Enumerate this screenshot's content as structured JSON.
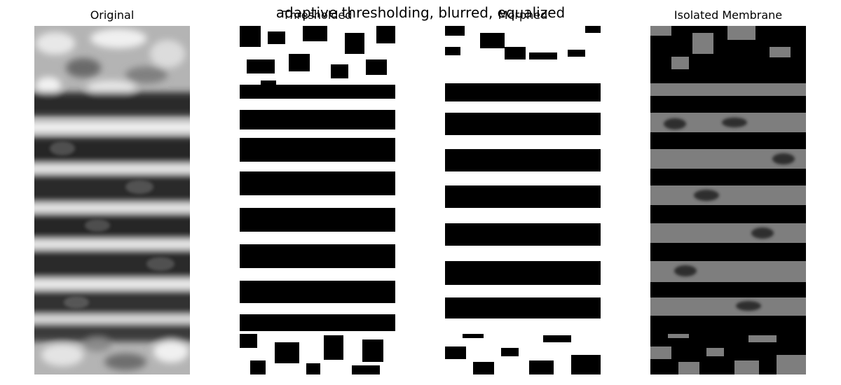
{
  "figure": {
    "suptitle": "adaptive thresholding, blurred, equalized"
  },
  "panels": [
    {
      "title": "Original"
    },
    {
      "title": "Thresholded"
    },
    {
      "title": "Morphed"
    },
    {
      "title": "Isolated Membrane"
    }
  ]
}
